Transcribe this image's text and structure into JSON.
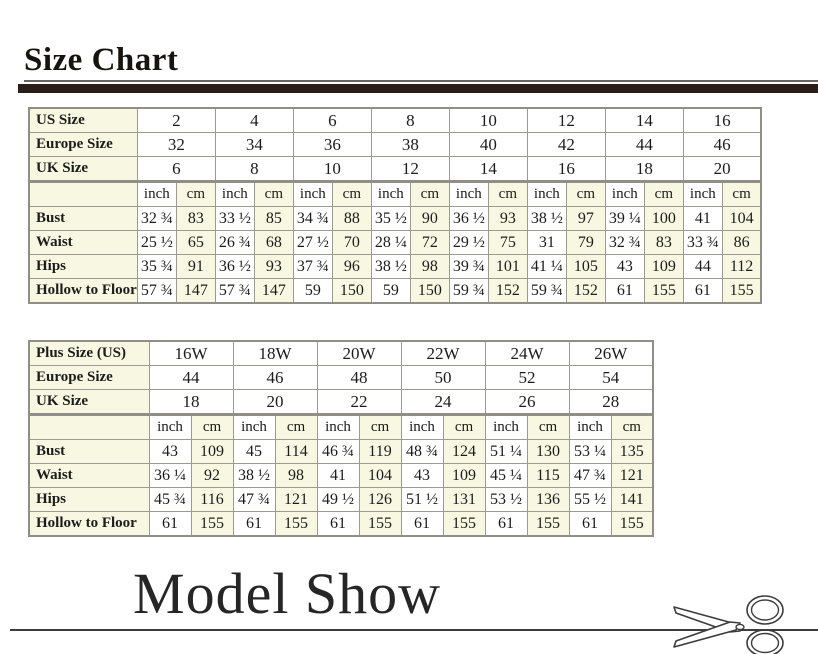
{
  "titles": {
    "size_chart": "Size Chart",
    "model_show": "Model Show"
  },
  "colors": {
    "divider_bar": "#2a1e1a",
    "cell_cream": "#f7f7e2",
    "table_border": "#9b9b92",
    "text": "#1c1c1c"
  },
  "icons": {
    "scissors": "✂"
  },
  "table1": {
    "size_rows": [
      {
        "label": "US Size",
        "values": [
          "2",
          "4",
          "6",
          "8",
          "10",
          "12",
          "14",
          "16"
        ]
      },
      {
        "label": "Europe Size",
        "values": [
          "32",
          "34",
          "36",
          "38",
          "40",
          "42",
          "44",
          "46"
        ]
      },
      {
        "label": "UK Size",
        "values": [
          "6",
          "8",
          "10",
          "12",
          "14",
          "16",
          "18",
          "20"
        ]
      }
    ],
    "unit_row": [
      "inch",
      "cm"
    ],
    "measure_rows": [
      {
        "label": "Bust",
        "inch": [
          "32 ¾",
          "33 ½",
          "34 ¾",
          "35 ½",
          "36 ½",
          "38 ½",
          "39 ¼",
          "41"
        ],
        "cm": [
          "83",
          "85",
          "88",
          "90",
          "93",
          "97",
          "100",
          "104"
        ]
      },
      {
        "label": "Waist",
        "inch": [
          "25 ½",
          "26 ¾",
          "27 ½",
          "28 ¼",
          "29 ½",
          "31",
          "32 ¾",
          "33 ¾"
        ],
        "cm": [
          "65",
          "68",
          "70",
          "72",
          "75",
          "79",
          "83",
          "86"
        ]
      },
      {
        "label": "Hips",
        "inch": [
          "35 ¾",
          "36 ½",
          "37 ¾",
          "38 ½",
          "39 ¾",
          "41 ¼",
          "43",
          "44"
        ],
        "cm": [
          "91",
          "93",
          "96",
          "98",
          "101",
          "105",
          "109",
          "112"
        ]
      },
      {
        "label": "Hollow to Floor",
        "inch": [
          "57 ¾",
          "57 ¾",
          "59",
          "59",
          "59 ¾",
          "59 ¾",
          "61",
          "61"
        ],
        "cm": [
          "147",
          "147",
          "150",
          "150",
          "152",
          "152",
          "155",
          "155"
        ]
      }
    ]
  },
  "table2": {
    "size_rows": [
      {
        "label": "Plus Size (US)",
        "values": [
          "16W",
          "18W",
          "20W",
          "22W",
          "24W",
          "26W"
        ]
      },
      {
        "label": "Europe Size",
        "values": [
          "44",
          "46",
          "48",
          "50",
          "52",
          "54"
        ]
      },
      {
        "label": "UK Size",
        "values": [
          "18",
          "20",
          "22",
          "24",
          "26",
          "28"
        ]
      }
    ],
    "unit_row": [
      "inch",
      "cm"
    ],
    "measure_rows": [
      {
        "label": "Bust",
        "inch": [
          "43",
          "45",
          "46 ¾",
          "48 ¾",
          "51 ¼",
          "53 ¼"
        ],
        "cm": [
          "109",
          "114",
          "119",
          "124",
          "130",
          "135"
        ]
      },
      {
        "label": "Waist",
        "inch": [
          "36 ¼",
          "38 ½",
          "41",
          "43",
          "45 ¼",
          "47 ¾"
        ],
        "cm": [
          "92",
          "98",
          "104",
          "109",
          "115",
          "121"
        ]
      },
      {
        "label": "Hips",
        "inch": [
          "45 ¾",
          "47 ¾",
          "49 ½",
          "51 ½",
          "53 ½",
          "55 ½"
        ],
        "cm": [
          "116",
          "121",
          "126",
          "131",
          "136",
          "141"
        ]
      },
      {
        "label": "Hollow to Floor",
        "inch": [
          "61",
          "61",
          "61",
          "61",
          "61",
          "61"
        ],
        "cm": [
          "155",
          "155",
          "155",
          "155",
          "155",
          "155"
        ]
      }
    ]
  }
}
